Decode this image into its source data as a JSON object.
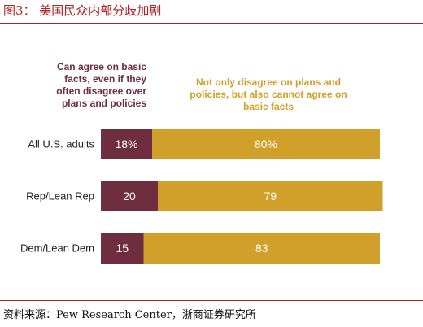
{
  "figure": {
    "title": "图3：  美国民众内部分歧加剧",
    "source": "资料来源：Pew Research Center，浙商证券研究所"
  },
  "chart_data": {
    "type": "bar",
    "orientation": "horizontal",
    "stacked": true,
    "categories": [
      "All U.S. adults",
      "Rep/Lean Rep",
      "Dem/Lean Dem"
    ],
    "series": [
      {
        "name": "Can agree on basic facts, even if they often disagree over plans and policies",
        "values": [
          18,
          20,
          15
        ],
        "labels": [
          "18%",
          "20",
          "15"
        ],
        "color": "#6e2e40"
      },
      {
        "name": "Not only disagree on plans and policies, but also cannot agree on basic facts",
        "values": [
          80,
          79,
          83
        ],
        "labels": [
          "80%",
          "79",
          "83"
        ],
        "color": "#d1a02a"
      }
    ],
    "legend": {
      "left_lines": [
        "Can agree on basic",
        "facts, even if they",
        "often disagree over",
        "plans and policies"
      ],
      "right_lines": [
        "Not only disagree on plans and",
        "policies, but also cannot agree on",
        "basic facts"
      ],
      "placement": "top"
    },
    "xlim": [
      0,
      100
    ],
    "grid": false
  }
}
